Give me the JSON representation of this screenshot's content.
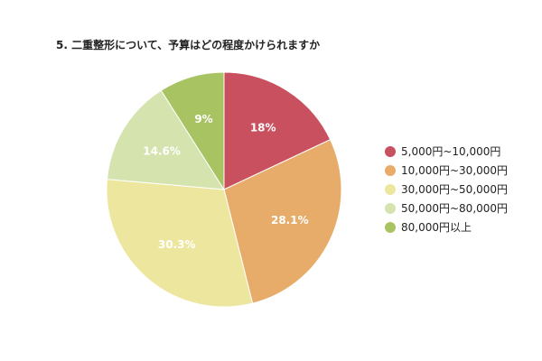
{
  "chart_data": {
    "type": "pie",
    "title": "5. 二重整形について、予算はどの程度かけられますか",
    "categories": [
      "5,000円~10,000円",
      "10,000円~30,000円",
      "30,000円~50,000円",
      "50,000円~80,000円",
      "80,000円以上"
    ],
    "values": [
      18,
      28.1,
      30.3,
      14.6,
      9
    ],
    "data_labels": [
      "18%",
      "28.1%",
      "30.3%",
      "14.6%",
      "9%"
    ],
    "colors": [
      "#c9505f",
      "#e8ac6a",
      "#ede69e",
      "#d5e3ae",
      "#a8c462"
    ],
    "legend_position": "right"
  }
}
